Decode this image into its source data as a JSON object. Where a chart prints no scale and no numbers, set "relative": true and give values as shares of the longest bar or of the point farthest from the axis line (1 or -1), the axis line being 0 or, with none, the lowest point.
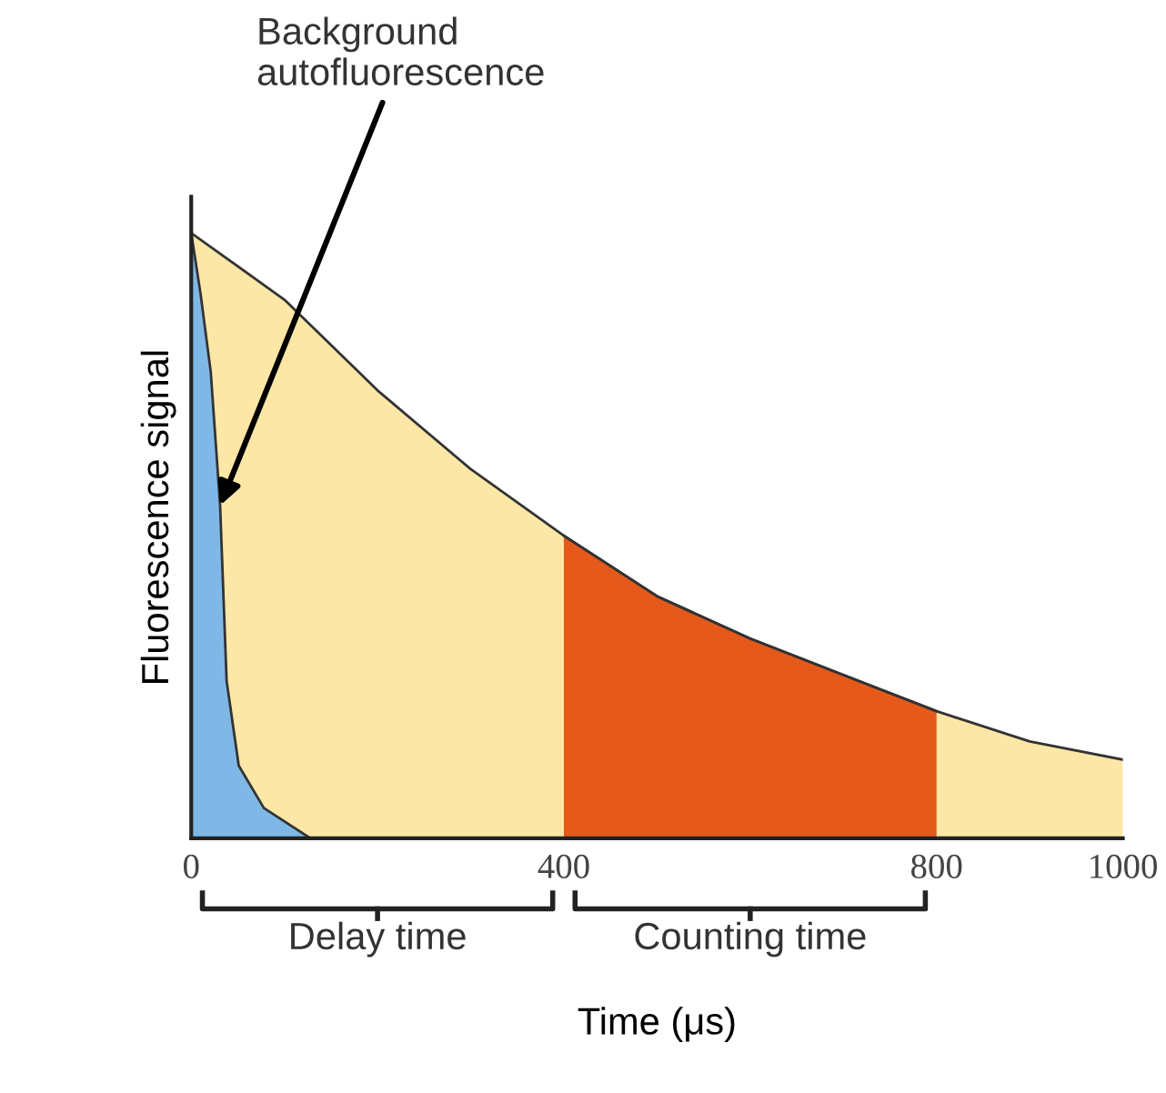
{
  "chart_data": {
    "type": "area",
    "relative": true,
    "xlabel": "Time (μs)",
    "ylabel": "Fluorescence signal",
    "xlim": [
      0,
      1000
    ],
    "xticks": [
      0,
      400,
      800,
      1000
    ],
    "grid": false,
    "series": [
      {
        "color": "#fde7a6",
        "x": [
          0,
          100,
          200,
          300,
          400,
          500,
          600,
          700,
          800,
          900,
          1000
        ],
        "values": [
          1,
          0.89,
          0.74,
          0.61,
          0.5,
          0.4,
          0.33,
          0.27,
          0.21,
          0.16,
          0.13
        ]
      },
      {
        "color": "#e55a1a",
        "x": [
          400,
          500,
          600,
          700,
          800
        ],
        "values": [
          0.5,
          0.4,
          0.33,
          0.27,
          0.21
        ]
      },
      {
        "color": "#7fb8e6",
        "x": [
          0,
          10,
          21,
          31,
          38,
          51,
          78,
          128
        ],
        "values": [
          1,
          0.9,
          0.77,
          0.55,
          0.26,
          0.12,
          0.05,
          0
        ]
      }
    ],
    "annotations": [
      {
        "text": "Background\nautofluorescence",
        "x": 31,
        "y": 0.55
      },
      {
        "text": "Delay time",
        "x": 200
      },
      {
        "text": "Counting time",
        "x": 600
      }
    ]
  }
}
